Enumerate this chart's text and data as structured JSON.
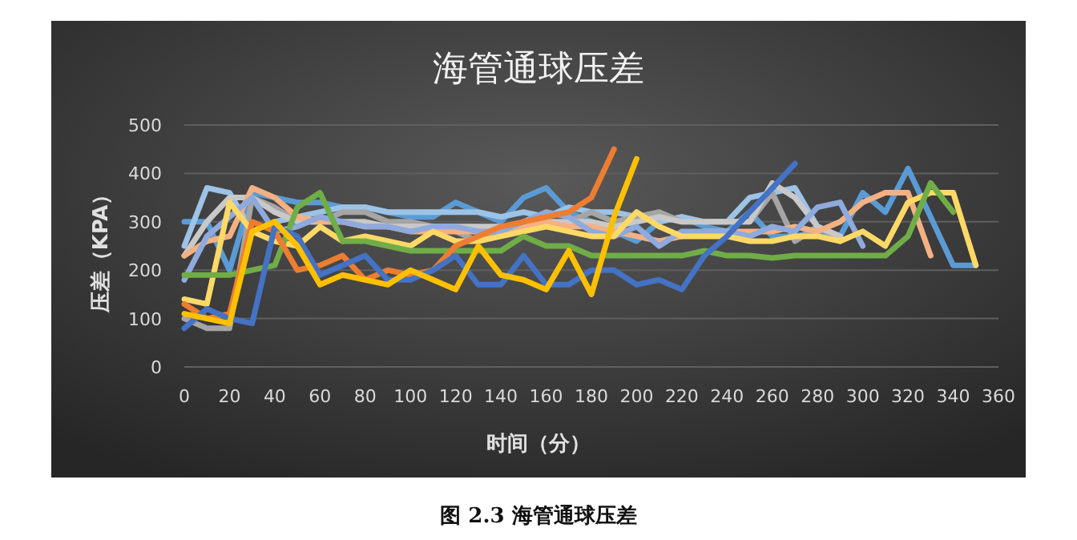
{
  "chart_data": {
    "type": "line",
    "title": "海管通球压差",
    "xlabel": "时间（分）",
    "ylabel": "压差（KPA）",
    "annotations": [
      "图 2.3  海管通球压差"
    ],
    "x": [
      0,
      10,
      20,
      30,
      40,
      50,
      60,
      70,
      80,
      90,
      100,
      110,
      120,
      130,
      140,
      150,
      160,
      170,
      180,
      190,
      200,
      210,
      220,
      230,
      240,
      250,
      260,
      270,
      280,
      290,
      300,
      310,
      320,
      330,
      340,
      350
    ],
    "xlim": [
      0,
      360
    ],
    "xticks": [
      0,
      20,
      40,
      60,
      80,
      100,
      120,
      140,
      160,
      180,
      200,
      220,
      240,
      260,
      280,
      300,
      320,
      340,
      360
    ],
    "ylim": [
      0,
      500
    ],
    "yticks": [
      0,
      100,
      200,
      300,
      400,
      500
    ],
    "grid": "y",
    "line_style": "solid",
    "marker": "none",
    "series": [
      {
        "color": "#5b9bd5",
        "values": [
          300,
          300,
          200,
          360,
          350,
          340,
          340,
          330,
          330,
          320,
          310,
          310,
          340,
          320,
          300,
          350,
          370,
          320,
          300,
          280,
          260,
          300,
          310,
          290,
          280,
          320,
          270,
          270,
          280,
          270,
          360,
          320,
          410,
          310,
          210,
          210
        ]
      },
      {
        "color": "#9dc3e6",
        "values": [
          250,
          370,
          360,
          280,
          300,
          310,
          320,
          330,
          330,
          320,
          320,
          320,
          320,
          320,
          310,
          320,
          310,
          330,
          320,
          320,
          310,
          300,
          310,
          300,
          300,
          350,
          360,
          370,
          290,
          270,
          null,
          null,
          null,
          null,
          null,
          null
        ]
      },
      {
        "color": "#a5a5a5",
        "values": [
          100,
          80,
          80,
          350,
          330,
          300,
          300,
          320,
          320,
          300,
          300,
          290,
          280,
          260,
          290,
          290,
          290,
          300,
          320,
          300,
          310,
          320,
          300,
          300,
          300,
          300,
          360,
          260,
          290,
          260,
          null,
          null,
          null,
          null,
          null,
          null
        ]
      },
      {
        "color": "#c9c9c9",
        "values": [
          230,
          300,
          350,
          350,
          320,
          300,
          300,
          300,
          300,
          290,
          290,
          290,
          290,
          290,
          290,
          290,
          300,
          300,
          300,
          290,
          300,
          310,
          300,
          300,
          300,
          300,
          380,
          350,
          290,
          270,
          null,
          null,
          null,
          null,
          null,
          null
        ]
      },
      {
        "color": "#f4b183",
        "values": [
          230,
          260,
          270,
          370,
          350,
          310,
          300,
          300,
          290,
          290,
          280,
          280,
          280,
          280,
          280,
          290,
          300,
          290,
          290,
          280,
          270,
          260,
          270,
          280,
          280,
          280,
          280,
          290,
          280,
          300,
          340,
          360,
          360,
          230,
          null,
          null
        ]
      },
      {
        "color": "#8faadc",
        "values": [
          180,
          270,
          310,
          350,
          280,
          290,
          310,
          300,
          290,
          290,
          280,
          290,
          290,
          280,
          280,
          300,
          320,
          310,
          280,
          270,
          290,
          250,
          280,
          280,
          280,
          270,
          290,
          280,
          330,
          340,
          250,
          null,
          null,
          null,
          null,
          null
        ]
      },
      {
        "color": "#ffd966",
        "values": [
          140,
          130,
          340,
          280,
          260,
          250,
          290,
          260,
          270,
          260,
          250,
          280,
          260,
          260,
          270,
          280,
          290,
          280,
          270,
          270,
          320,
          290,
          270,
          270,
          270,
          260,
          260,
          270,
          270,
          260,
          280,
          250,
          340,
          360,
          360,
          210
        ]
      },
      {
        "color": "#70ad47",
        "values": [
          190,
          190,
          190,
          200,
          210,
          330,
          360,
          260,
          260,
          250,
          240,
          240,
          240,
          240,
          240,
          270,
          250,
          250,
          230,
          230,
          230,
          230,
          230,
          240,
          230,
          230,
          225,
          230,
          230,
          230,
          230,
          230,
          270,
          380,
          320,
          null
        ]
      },
      {
        "color": "#ed7d31",
        "values": [
          130,
          100,
          110,
          300,
          280,
          200,
          210,
          230,
          180,
          200,
          190,
          200,
          250,
          270,
          290,
          300,
          310,
          320,
          350,
          450,
          null,
          null,
          null,
          null,
          null,
          null,
          null,
          null,
          null,
          null,
          null,
          null,
          null,
          null,
          null,
          null
        ]
      },
      {
        "color": "#4472c4",
        "values": [
          80,
          120,
          100,
          90,
          290,
          270,
          190,
          210,
          230,
          180,
          180,
          200,
          230,
          170,
          170,
          230,
          170,
          170,
          200,
          200,
          170,
          180,
          160,
          230,
          270,
          320,
          370,
          420,
          null,
          null,
          null,
          null,
          null,
          null,
          null,
          null
        ]
      },
      {
        "color": "#ffc000",
        "values": [
          110,
          100,
          90,
          280,
          300,
          250,
          170,
          190,
          180,
          170,
          200,
          180,
          160,
          250,
          190,
          180,
          160,
          240,
          150,
          310,
          430,
          null,
          null,
          null,
          null,
          null,
          null,
          null,
          null,
          null,
          null,
          null,
          null,
          null,
          null,
          null
        ]
      }
    ]
  }
}
